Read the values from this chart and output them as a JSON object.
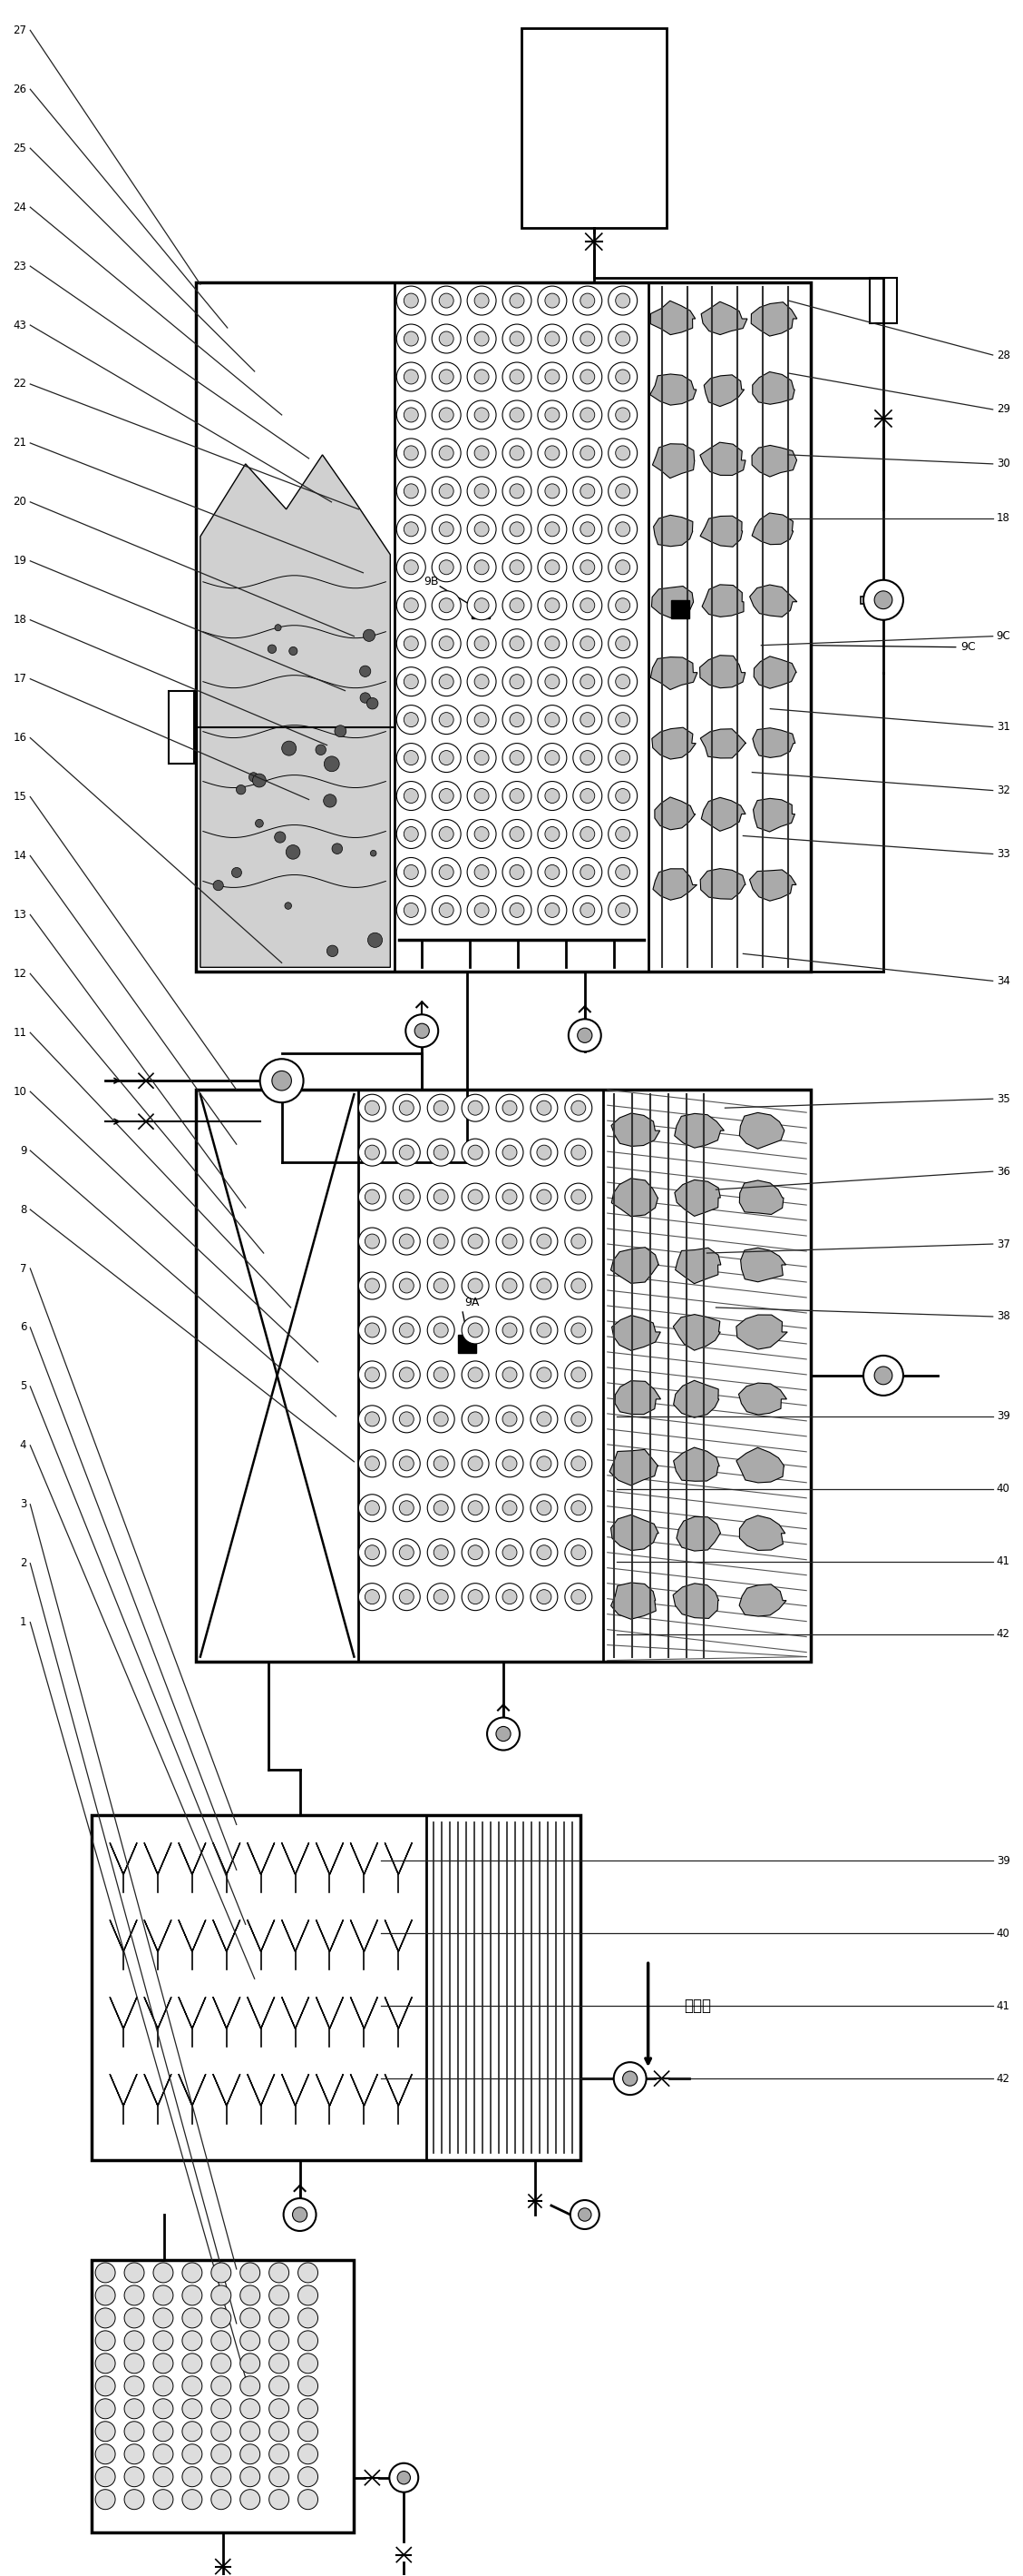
{
  "bg_color": "#ffffff",
  "fig_width": 11.28,
  "fig_height": 28.37,
  "arrow_label": "回流液",
  "left_labels": [
    "27",
    "26",
    "25",
    "24",
    "23",
    "43",
    "22",
    "21",
    "20",
    "19",
    "18",
    "17",
    "16",
    "15",
    "14",
    "13",
    "12",
    "11",
    "10",
    "9",
    "8",
    "7",
    "6",
    "5",
    "4",
    "3",
    "2",
    "1"
  ],
  "right_labels_top": [
    "28",
    "29",
    "30",
    "18",
    "9C",
    "31",
    "32",
    "33",
    "34"
  ],
  "right_labels_mid": [
    "35",
    "36",
    "37",
    "38"
  ],
  "right_labels_bot": [
    "39",
    "40",
    "41",
    "42",
    "39",
    "40",
    "41",
    "42"
  ]
}
